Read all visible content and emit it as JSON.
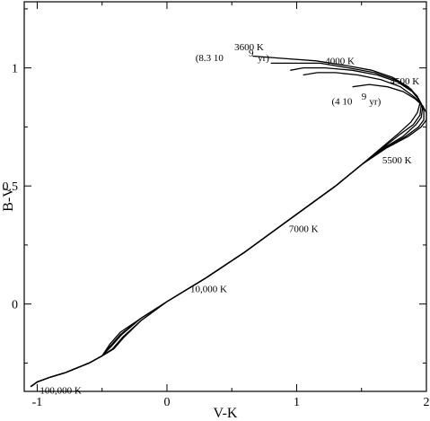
{
  "chart_data": {
    "type": "line",
    "xlabel": "V-K",
    "ylabel": "B-V",
    "xlim": [
      -1.1,
      2.0
    ],
    "ylim": [
      -0.37,
      1.28
    ],
    "xticks": [
      -1,
      0,
      1,
      2
    ],
    "xtick_labels": [
      "-1",
      "0",
      "1",
      "2"
    ],
    "yticks": [
      0,
      0.5,
      1
    ],
    "ytick_labels": [
      "0",
      "0.5",
      "1"
    ],
    "grid": false,
    "series": [
      {
        "x": [
          -1.05,
          -1.0,
          -0.9,
          -0.78,
          -0.6,
          -0.5,
          -0.44,
          -0.36,
          -0.2,
          0.0,
          0.3,
          0.6,
          0.9,
          1.1,
          1.3,
          1.5,
          1.65,
          1.78,
          1.88,
          1.93,
          1.95,
          1.93,
          1.86,
          1.74,
          1.58,
          1.38,
          1.15,
          0.9,
          0.66
        ],
        "y": [
          -0.35,
          -0.33,
          -0.31,
          -0.29,
          -0.25,
          -0.22,
          -0.17,
          -0.12,
          -0.06,
          0.01,
          0.11,
          0.22,
          0.34,
          0.42,
          0.5,
          0.59,
          0.66,
          0.72,
          0.77,
          0.81,
          0.85,
          0.88,
          0.92,
          0.96,
          0.99,
          1.01,
          1.03,
          1.04,
          1.05
        ]
      },
      {
        "x": [
          -1.05,
          -1.0,
          -0.9,
          -0.78,
          -0.6,
          -0.5,
          -0.44,
          -0.36,
          -0.2,
          0.0,
          0.3,
          0.6,
          0.9,
          1.1,
          1.3,
          1.5,
          1.66,
          1.8,
          1.9,
          1.95,
          1.96,
          1.94,
          1.88,
          1.76,
          1.6,
          1.4,
          1.18,
          0.97,
          0.8
        ],
        "y": [
          -0.35,
          -0.33,
          -0.31,
          -0.29,
          -0.25,
          -0.22,
          -0.18,
          -0.13,
          -0.06,
          0.01,
          0.11,
          0.22,
          0.34,
          0.42,
          0.5,
          0.59,
          0.66,
          0.72,
          0.76,
          0.8,
          0.84,
          0.87,
          0.91,
          0.95,
          0.98,
          1.0,
          1.02,
          1.02,
          1.02
        ]
      },
      {
        "x": [
          -1.05,
          -1.0,
          -0.9,
          -0.78,
          -0.6,
          -0.5,
          -0.43,
          -0.35,
          -0.2,
          0.0,
          0.3,
          0.6,
          0.9,
          1.1,
          1.3,
          1.5,
          1.67,
          1.82,
          1.92,
          1.96,
          1.97,
          1.95,
          1.89,
          1.78,
          1.62,
          1.43,
          1.22,
          1.05,
          0.95
        ],
        "y": [
          -0.35,
          -0.33,
          -0.31,
          -0.29,
          -0.25,
          -0.22,
          -0.18,
          -0.13,
          -0.06,
          0.01,
          0.11,
          0.22,
          0.34,
          0.42,
          0.5,
          0.59,
          0.66,
          0.71,
          0.76,
          0.79,
          0.83,
          0.86,
          0.9,
          0.94,
          0.97,
          0.99,
          1.0,
          1.0,
          0.99
        ]
      },
      {
        "x": [
          -1.05,
          -1.0,
          -0.9,
          -0.78,
          -0.6,
          -0.5,
          -0.42,
          -0.34,
          -0.2,
          0.0,
          0.3,
          0.6,
          0.9,
          1.1,
          1.3,
          1.5,
          1.68,
          1.84,
          1.94,
          1.98,
          1.98,
          1.96,
          1.9,
          1.8,
          1.65,
          1.47,
          1.3,
          1.16,
          1.05
        ],
        "y": [
          -0.35,
          -0.33,
          -0.31,
          -0.29,
          -0.25,
          -0.22,
          -0.19,
          -0.14,
          -0.07,
          0.01,
          0.11,
          0.22,
          0.34,
          0.42,
          0.5,
          0.59,
          0.66,
          0.71,
          0.75,
          0.78,
          0.82,
          0.85,
          0.88,
          0.92,
          0.95,
          0.97,
          0.98,
          0.98,
          0.97
        ]
      },
      {
        "x": [
          -1.05,
          -1.0,
          -0.9,
          -0.78,
          -0.6,
          -0.5,
          -0.41,
          -0.33,
          -0.2,
          0.0,
          0.3,
          0.6,
          0.9,
          1.1,
          1.3,
          1.5,
          1.69,
          1.86,
          1.96,
          2.0,
          2.0,
          1.97,
          1.91,
          1.82,
          1.7,
          1.56,
          1.43
        ],
        "y": [
          -0.35,
          -0.33,
          -0.31,
          -0.29,
          -0.25,
          -0.22,
          -0.19,
          -0.14,
          -0.07,
          0.01,
          0.11,
          0.22,
          0.34,
          0.42,
          0.5,
          0.59,
          0.66,
          0.71,
          0.75,
          0.78,
          0.81,
          0.84,
          0.87,
          0.9,
          0.92,
          0.93,
          0.92
        ]
      }
    ],
    "annotations": [
      {
        "text": "3600 K",
        "x": 0.52,
        "y": 1.075
      },
      {
        "text": "(8.3 10",
        "x": 0.22,
        "y": 1.03
      },
      {
        "text": "9",
        "x": 0.63,
        "y": 1.05
      },
      {
        "text": "yr)",
        "x": 0.7,
        "y": 1.03
      },
      {
        "text": "4000 K",
        "x": 1.22,
        "y": 1.015
      },
      {
        "text": "4500 K",
        "x": 1.72,
        "y": 0.93
      },
      {
        "text": "(4 10",
        "x": 1.27,
        "y": 0.845
      },
      {
        "text": "9",
        "x": 1.5,
        "y": 0.865
      },
      {
        "text": "yr)",
        "x": 1.56,
        "y": 0.845
      },
      {
        "text": "5500 K",
        "x": 1.66,
        "y": 0.595
      },
      {
        "text": "7000 K",
        "x": 0.94,
        "y": 0.305
      },
      {
        "text": "10,000 K",
        "x": 0.18,
        "y": 0.05
      },
      {
        "text": "100,000 K",
        "x": -0.98,
        "y": -0.38
      }
    ]
  }
}
